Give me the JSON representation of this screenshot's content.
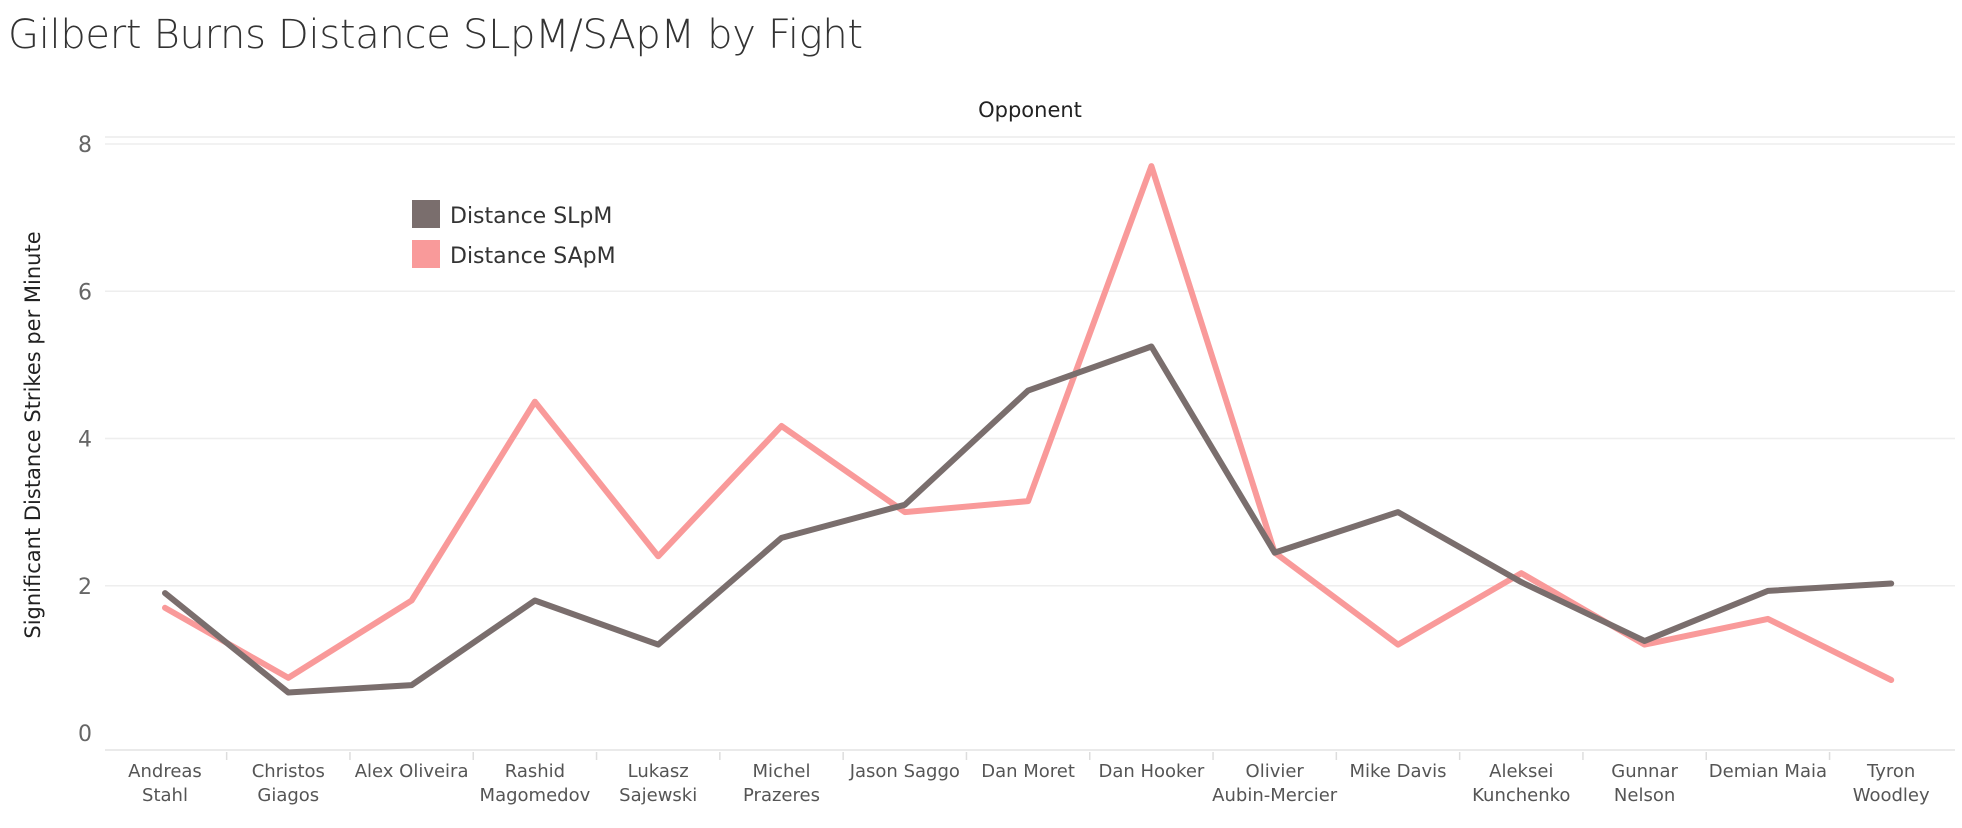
{
  "chart_data": {
    "type": "line",
    "title": "Gilbert Burns Distance SLpM/SApM by Fight",
    "xlabel": "Opponent",
    "ylabel": "Significant Distance Strikes per Minute",
    "categories": [
      [
        "Andreas",
        "Stahl"
      ],
      [
        "Christos",
        "Giagos"
      ],
      [
        "Alex Oliveira"
      ],
      [
        "Rashid",
        "Magomedov"
      ],
      [
        "Lukasz",
        "Sajewski"
      ],
      [
        "Michel",
        "Prazeres"
      ],
      [
        "Jason Saggo"
      ],
      [
        "Dan Moret"
      ],
      [
        "Dan Hooker"
      ],
      [
        "Olivier",
        "Aubin-Mercier"
      ],
      [
        "Mike Davis"
      ],
      [
        "Aleksei",
        "Kunchenko"
      ],
      [
        "Gunnar",
        "Nelson"
      ],
      [
        "Demian Maia"
      ],
      [
        "Tyron",
        "Woodley"
      ]
    ],
    "series": [
      {
        "name": "Distance SLpM",
        "color": "#7a6e6d",
        "values": [
          1.9,
          0.55,
          0.65,
          1.8,
          1.2,
          2.65,
          3.1,
          4.65,
          5.25,
          2.45,
          3.0,
          2.05,
          1.25,
          1.93,
          2.03
        ]
      },
      {
        "name": "Distance SApM",
        "color": "#f99a9a",
        "values": [
          1.7,
          0.75,
          1.8,
          4.5,
          2.4,
          4.17,
          3.0,
          3.15,
          7.7,
          2.45,
          1.2,
          2.17,
          1.2,
          1.55,
          0.72
        ]
      }
    ],
    "yticks": [
      0,
      2,
      4,
      6,
      8
    ],
    "ylim": [
      0,
      8
    ],
    "grid": true,
    "legend_position": "top-left"
  }
}
